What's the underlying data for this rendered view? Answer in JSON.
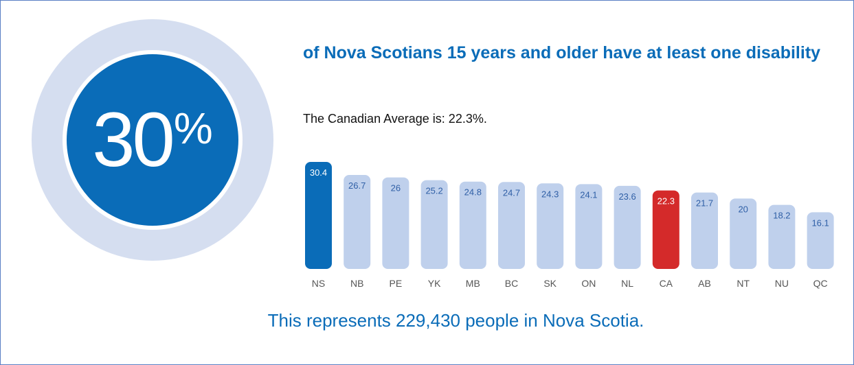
{
  "colors": {
    "accent": "#0a6cb8",
    "ring": "#d5def0",
    "bar": "#bfd0ec",
    "bar_text": "#2f5fa6",
    "highlight_ns": "#0a6cb8",
    "highlight_ca": "#d42a2a",
    "border": "#5a7fc4",
    "tick": "#555555"
  },
  "hero": {
    "number": "30",
    "percent_sign": "%"
  },
  "headline": "of Nova Scotians 15 years and older have at least one disability",
  "average_text": "The Canadian Average is: 22.3%.",
  "footer": "This represents 229,430 people in Nova Scotia.",
  "chart_data": {
    "type": "bar",
    "categories": [
      "NS",
      "NB",
      "PE",
      "YK",
      "MB",
      "BC",
      "SK",
      "ON",
      "NL",
      "CA",
      "AB",
      "NT",
      "NU",
      "QC"
    ],
    "values": [
      30.4,
      26.7,
      26,
      25.2,
      24.8,
      24.7,
      24.3,
      24.1,
      23.6,
      22.3,
      21.7,
      20,
      18.2,
      16.1
    ],
    "labels": [
      "30.4",
      "26.7",
      "26",
      "25.2",
      "24.8",
      "24.7",
      "24.3",
      "24.1",
      "23.6",
      "22.3",
      "21.7",
      "20",
      "18.2",
      "16.1"
    ],
    "highlight": {
      "NS": "#0a6cb8",
      "CA": "#d42a2a"
    },
    "title": "",
    "xlabel": "",
    "ylabel": "",
    "ylim": [
      0,
      30.4
    ],
    "grid": false
  }
}
